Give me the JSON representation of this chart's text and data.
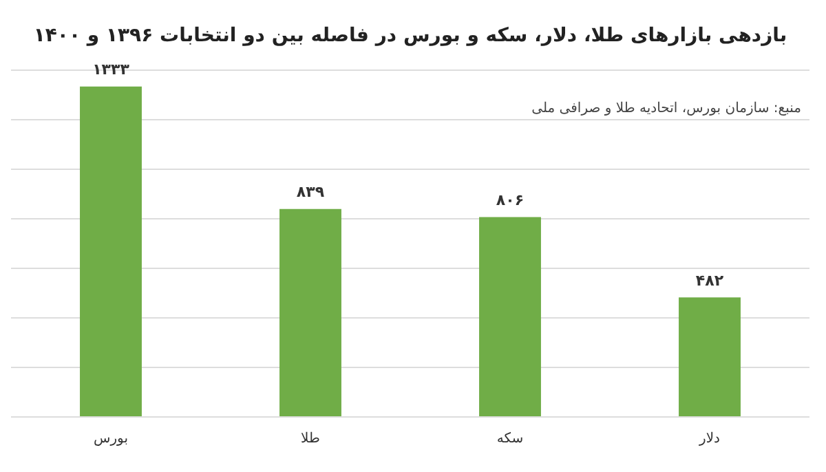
{
  "chart_data": {
    "type": "bar",
    "title": "بازدهی بازارهای طلا، دلار، سکه و بورس در فاصله بین دو انتخابات ۱۳۹۶ و ۱۴۰۰",
    "categories": [
      "بورس",
      "طلا",
      "سکه",
      "دلار"
    ],
    "values": [
      1333,
      839,
      806,
      482
    ],
    "color": "#70ad47",
    "value_labels": [
      "۱۳۳۳",
      "۸۳۹",
      "۸۰۶",
      "۴۸۲"
    ],
    "ylim": [
      0,
      1400
    ],
    "yticks": [
      {
        "value": 0,
        "label": null
      },
      {
        "value": 200,
        "label": null
      },
      {
        "value": 400,
        "label": null
      },
      {
        "value": 600,
        "label": null
      },
      {
        "value": 800,
        "label": null
      },
      {
        "value": 1000,
        "label": null
      },
      {
        "value": 1200,
        "label": null
      },
      {
        "value": 1400,
        "label": null
      }
    ],
    "grid": "y",
    "legend": false,
    "annotations": [
      "منبع: سازمان بورس، اتحادیه طلا و صرافی ملی"
    ]
  }
}
